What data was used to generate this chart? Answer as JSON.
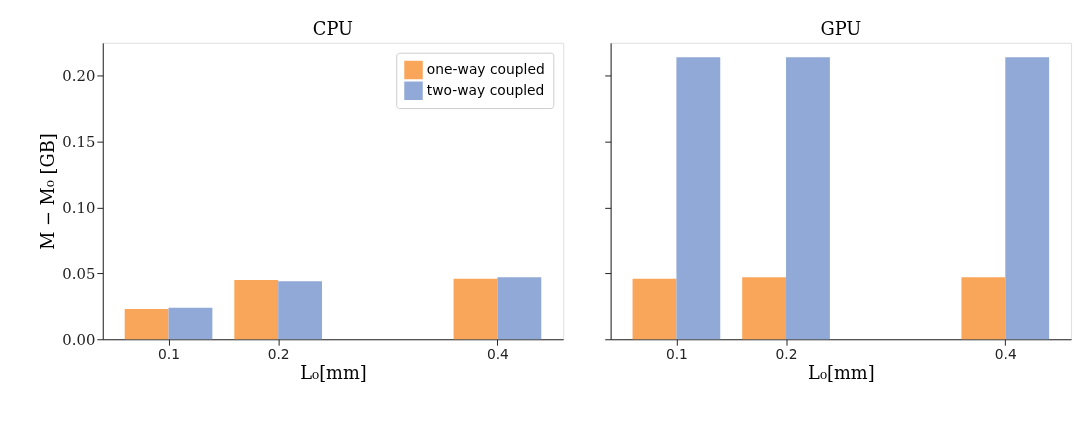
{
  "chart_data": [
    {
      "type": "bar",
      "title": "CPU",
      "xlabel": "L₀[mm]",
      "ylabel": "M − M₀ [GB]",
      "x": [
        0.1,
        0.2,
        0.4
      ],
      "xlim": [
        0.04,
        0.46
      ],
      "xticks": [
        0.1,
        0.2,
        0.4
      ],
      "ylim": [
        0,
        0.225
      ],
      "yticks": [
        {
          "value": 0,
          "label": "0.00"
        },
        {
          "value": 0.05,
          "label": "0.05"
        },
        {
          "value": 0.1,
          "label": "0.10"
        },
        {
          "value": 0.15,
          "label": "0.15"
        },
        {
          "value": 0.2,
          "label": "0.20"
        }
      ],
      "series": [
        {
          "name": "one-way coupled",
          "color": "#f9a65a",
          "values": [
            0.023,
            0.045,
            0.046
          ]
        },
        {
          "name": "two-way coupled",
          "color": "#90a9d6",
          "values": [
            0.024,
            0.044,
            0.047
          ]
        }
      ],
      "legend": "top right",
      "grid": false
    },
    {
      "type": "bar",
      "title": "GPU",
      "xlabel": "L₀[mm]",
      "x": [
        0.1,
        0.2,
        0.4
      ],
      "xlim": [
        0.04,
        0.46
      ],
      "xticks": [
        0.1,
        0.2,
        0.4
      ],
      "ylim": [
        0,
        0.225
      ],
      "yticks": [
        {
          "value": 0,
          "label": null
        },
        {
          "value": 0.05,
          "label": null
        },
        {
          "value": 0.1,
          "label": null
        },
        {
          "value": 0.15,
          "label": null
        },
        {
          "value": 0.2,
          "label": null
        }
      ],
      "tick_labels": "x",
      "series": [
        {
          "color": "#f9a65a",
          "values": [
            0.046,
            0.047,
            0.047
          ]
        },
        {
          "color": "#90a9d6",
          "values": [
            0.214,
            0.214,
            0.214
          ]
        }
      ],
      "grid": false
    }
  ]
}
